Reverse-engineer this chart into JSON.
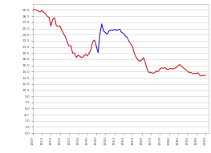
{
  "background_color": "#ffffff",
  "grid_color": "#cccccc",
  "red_color": "#cc2222",
  "blue_color": "#2222cc",
  "xlim": [
    1909,
    2006
  ],
  "ylim": [
    0.0,
    31.5
  ],
  "xtick_values": [
    1909,
    1914,
    1919,
    1924,
    1929,
    1934,
    1939,
    1944,
    1949,
    1954,
    1959,
    1964,
    1969,
    1974,
    1979,
    1984,
    1989,
    1994,
    1999,
    2004
  ],
  "ytick_values": [
    0.0,
    1.5,
    3.0,
    4.5,
    6.0,
    7.5,
    9.0,
    10.5,
    12.0,
    13.5,
    15.0,
    16.5,
    18.0,
    19.5,
    21.0,
    22.5,
    24.0,
    25.5,
    27.0,
    28.5,
    30.0
  ],
  "blue_start_year": 1944,
  "blue_end_year": 1961,
  "data": [
    [
      1909,
      30.1
    ],
    [
      1910,
      30.1
    ],
    [
      1911,
      29.9
    ],
    [
      1912,
      29.8
    ],
    [
      1913,
      29.5
    ],
    [
      1914,
      29.9
    ],
    [
      1915,
      29.5
    ],
    [
      1916,
      29.1
    ],
    [
      1917,
      28.5
    ],
    [
      1918,
      28.2
    ],
    [
      1919,
      26.1
    ],
    [
      1920,
      27.7
    ],
    [
      1921,
      28.1
    ],
    [
      1922,
      26.2
    ],
    [
      1923,
      26.0
    ],
    [
      1924,
      26.1
    ],
    [
      1925,
      25.1
    ],
    [
      1926,
      24.2
    ],
    [
      1927,
      23.5
    ],
    [
      1928,
      22.2
    ],
    [
      1929,
      21.2
    ],
    [
      1930,
      21.3
    ],
    [
      1931,
      19.5
    ],
    [
      1932,
      19.5
    ],
    [
      1933,
      18.4
    ],
    [
      1934,
      19.0
    ],
    [
      1935,
      18.7
    ],
    [
      1936,
      18.4
    ],
    [
      1937,
      18.7
    ],
    [
      1938,
      19.2
    ],
    [
      1939,
      18.8
    ],
    [
      1940,
      19.4
    ],
    [
      1941,
      20.3
    ],
    [
      1942,
      22.2
    ],
    [
      1943,
      22.7
    ],
    [
      1944,
      21.2
    ],
    [
      1945,
      19.6
    ],
    [
      1946,
      24.1
    ],
    [
      1947,
      26.6
    ],
    [
      1948,
      24.9
    ],
    [
      1949,
      24.5
    ],
    [
      1950,
      24.1
    ],
    [
      1951,
      24.9
    ],
    [
      1952,
      25.1
    ],
    [
      1953,
      25.0
    ],
    [
      1954,
      25.3
    ],
    [
      1955,
      25.0
    ],
    [
      1956,
      25.2
    ],
    [
      1957,
      25.3
    ],
    [
      1958,
      24.5
    ],
    [
      1959,
      24.3
    ],
    [
      1960,
      23.7
    ],
    [
      1961,
      23.3
    ],
    [
      1962,
      22.4
    ],
    [
      1963,
      21.7
    ],
    [
      1964,
      21.0
    ],
    [
      1965,
      19.4
    ],
    [
      1966,
      18.4
    ],
    [
      1967,
      17.8
    ],
    [
      1968,
      17.5
    ],
    [
      1969,
      17.8
    ],
    [
      1970,
      18.4
    ],
    [
      1971,
      17.2
    ],
    [
      1972,
      15.6
    ],
    [
      1973,
      14.8
    ],
    [
      1974,
      14.8
    ],
    [
      1975,
      14.6
    ],
    [
      1976,
      14.7
    ],
    [
      1977,
      15.1
    ],
    [
      1978,
      15.0
    ],
    [
      1979,
      15.6
    ],
    [
      1980,
      15.9
    ],
    [
      1981,
      15.8
    ],
    [
      1982,
      15.9
    ],
    [
      1983,
      15.5
    ],
    [
      1984,
      15.6
    ],
    [
      1985,
      15.8
    ],
    [
      1986,
      15.6
    ],
    [
      1987,
      15.7
    ],
    [
      1988,
      16.0
    ],
    [
      1989,
      16.4
    ],
    [
      1990,
      16.7
    ],
    [
      1991,
      16.3
    ],
    [
      1992,
      15.9
    ],
    [
      1993,
      15.5
    ],
    [
      1994,
      15.2
    ],
    [
      1995,
      14.8
    ],
    [
      1996,
      14.8
    ],
    [
      1997,
      14.5
    ],
    [
      1998,
      14.6
    ],
    [
      1999,
      14.5
    ],
    [
      2000,
      14.7
    ],
    [
      2001,
      14.1
    ],
    [
      2002,
      13.9
    ],
    [
      2003,
      14.1
    ],
    [
      2004,
      14.0
    ]
  ]
}
